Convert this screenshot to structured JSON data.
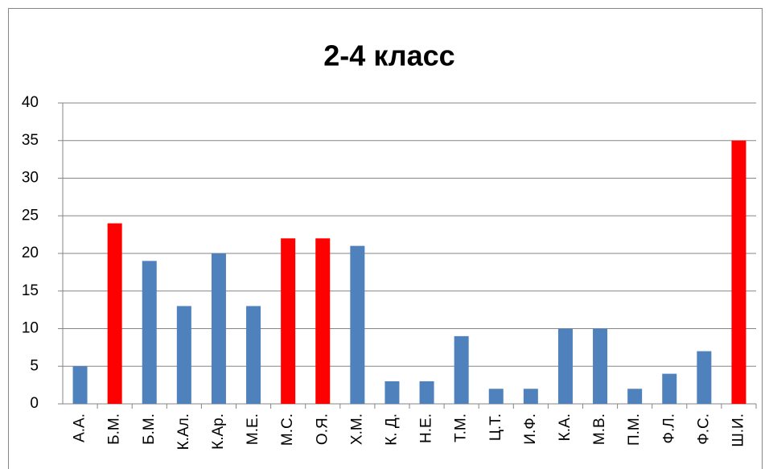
{
  "chart_data": {
    "type": "bar",
    "title": "2-4 класс",
    "categories": [
      "А.А.",
      "Б.М.",
      "Б.М.",
      "К.Ал.",
      "К.Ар.",
      "М.Е.",
      "М.С.",
      "О.Я.",
      "Х.М.",
      "К. Д.",
      "Н.Е.",
      "Т.М.",
      "Ц.Т.",
      "И.Ф.",
      "К.А.",
      "М.В.",
      "П.М.",
      "Ф.Л.",
      "Ф.С.",
      "Ш.И."
    ],
    "values": [
      5,
      24,
      19,
      13,
      20,
      13,
      22,
      22,
      21,
      3,
      3,
      9,
      2,
      2,
      10,
      10,
      2,
      4,
      7,
      35
    ],
    "colors": [
      "#4f81bd",
      "#ff0000",
      "#4f81bd",
      "#4f81bd",
      "#4f81bd",
      "#4f81bd",
      "#ff0000",
      "#ff0000",
      "#4f81bd",
      "#4f81bd",
      "#4f81bd",
      "#4f81bd",
      "#4f81bd",
      "#4f81bd",
      "#4f81bd",
      "#4f81bd",
      "#4f81bd",
      "#4f81bd",
      "#4f81bd",
      "#ff0000"
    ],
    "ylim": [
      0,
      40
    ],
    "yticks": [
      0,
      5,
      10,
      15,
      20,
      25,
      30,
      35,
      40
    ],
    "grid": true
  }
}
